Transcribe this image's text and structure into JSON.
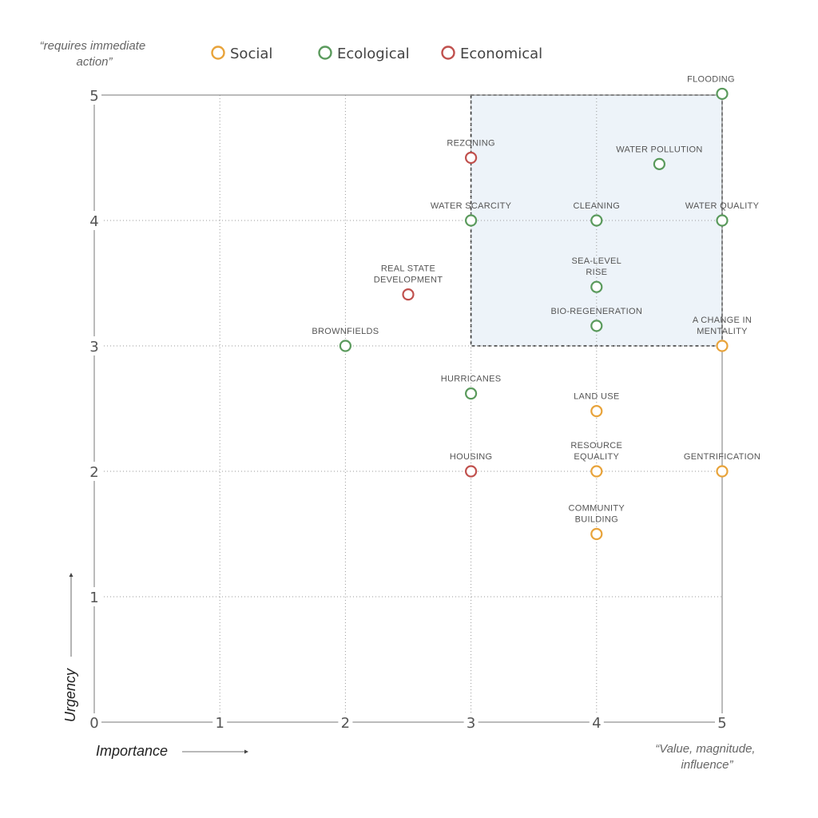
{
  "chart_data": {
    "type": "scatter",
    "xlabel": "Importance",
    "ylabel": "Urgency",
    "xlim": [
      0,
      5
    ],
    "ylim": [
      0,
      5
    ],
    "x_ticks": [
      "0",
      "1",
      "2",
      "3",
      "4",
      "5"
    ],
    "y_ticks": [
      "0",
      "1",
      "2",
      "3",
      "4",
      "5"
    ],
    "grid": true,
    "legend_position": "top",
    "annotations": {
      "top": "“requires immediate action”",
      "bottom_right": "“Value, magnitude, influence”"
    },
    "highlight_region": {
      "x": [
        3,
        5
      ],
      "y": [
        3,
        5
      ],
      "fill": "#edf3f9",
      "border": "dashed"
    },
    "series": [
      {
        "name": "Social",
        "color": "#e8a33a",
        "points": [
          {
            "label": "A CHANGE IN MENTALITY",
            "x": 5,
            "y": 3
          },
          {
            "label": "LAND USE",
            "x": 4,
            "y": 2.48
          },
          {
            "label": "RESOURCE EQUALITY",
            "x": 4,
            "y": 2
          },
          {
            "label": "GENTRIFICATION",
            "x": 5,
            "y": 2
          },
          {
            "label": "COMMUNITY BUILDING",
            "x": 4,
            "y": 1.5
          }
        ]
      },
      {
        "name": "Ecological",
        "color": "#5a9a5c",
        "points": [
          {
            "label": "FLOODING",
            "x": 5,
            "y": 5.01
          },
          {
            "label": "WATER POLLUTION",
            "x": 4.5,
            "y": 4.45
          },
          {
            "label": "WATER SCARCITY",
            "x": 3,
            "y": 4
          },
          {
            "label": "CLEANING",
            "x": 4,
            "y": 4
          },
          {
            "label": "WATER QUALITY",
            "x": 5,
            "y": 4
          },
          {
            "label": "SEA-LEVEL RISE",
            "x": 4,
            "y": 3.47
          },
          {
            "label": "BIO-REGENERATION",
            "x": 4,
            "y": 3.16
          },
          {
            "label": "BROWNFIELDS",
            "x": 2,
            "y": 3
          },
          {
            "label": "HURRICANES",
            "x": 3,
            "y": 2.62
          }
        ]
      },
      {
        "name": "Economical",
        "color": "#c0504d",
        "points": [
          {
            "label": "REZONING",
            "x": 3,
            "y": 4.5
          },
          {
            "label": "REAL STATE DEVELOPMENT",
            "x": 2.5,
            "y": 3.41
          },
          {
            "label": "HOUSING",
            "x": 3,
            "y": 2
          }
        ]
      }
    ]
  }
}
